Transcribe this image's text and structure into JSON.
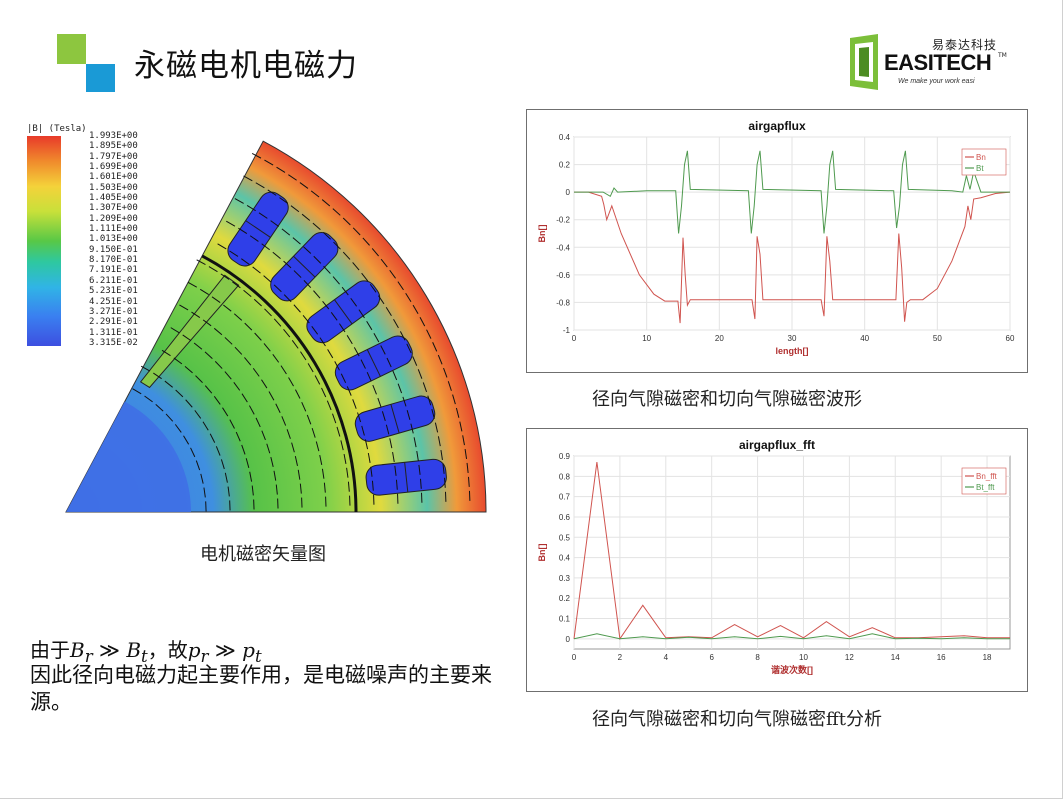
{
  "slide": {
    "title": "永磁电机电磁力",
    "logo": {
      "cn": "易泰达科技",
      "en": "EASITECH",
      "tm": "TM",
      "tagline": "We make your work easi"
    }
  },
  "legend": {
    "header": "|B| (Tesla)",
    "values": [
      "1.993E+00",
      "1.895E+00",
      "1.797E+00",
      "1.699E+00",
      "1.601E+00",
      "1.503E+00",
      "1.405E+00",
      "1.307E+00",
      "1.209E+00",
      "1.111E+00",
      "1.013E+00",
      "9.150E-01",
      "8.170E-01",
      "7.191E-01",
      "6.211E-01",
      "5.231E-01",
      "4.251E-01",
      "3.271E-01",
      "2.291E-01",
      "1.311E-01",
      "3.315E-02"
    ]
  },
  "captions": {
    "motor": "电机磁密矢量图",
    "plot1": "径向气隙磁密和切向气隙磁密波形",
    "plot2": "径向气隙磁密和切向气隙磁密fft分析"
  },
  "text": {
    "formula_prefix": "由于",
    "formula_mid": "，故",
    "line1": "因此径向电磁力起主要作用，是电磁噪声的主要来源。"
  },
  "chart_data": [
    {
      "type": "line",
      "title": "airgapflux",
      "xlabel": "length[]",
      "ylabel": "Bn[]",
      "xlim": [
        0,
        60
      ],
      "ylim": [
        -1,
        0.4
      ],
      "xticks": [
        0,
        10,
        20,
        30,
        40,
        50,
        60
      ],
      "yticks": [
        0.4,
        0.2,
        0,
        -0.2,
        -0.4,
        -0.6,
        -0.8,
        -1
      ],
      "grid": true,
      "legend": "top-right",
      "series": [
        {
          "name": "Bn",
          "color": "#d0544f",
          "x": [
            0,
            2,
            3.8,
            4.1,
            4.5,
            5.2,
            6.5,
            9,
            11,
            12.5,
            14.3,
            14.6,
            15,
            15.3,
            15.6,
            16,
            19,
            22,
            24.5,
            24.9,
            25.2,
            25.6,
            26,
            26.5,
            30,
            34,
            34.4,
            34.8,
            35.2,
            35.6,
            36,
            40,
            44.3,
            44.7,
            45.1,
            45.5,
            45.8,
            46.3,
            48,
            50,
            52,
            53.8,
            54.2,
            54.6,
            55,
            56,
            58,
            60
          ],
          "y": [
            0,
            0,
            -0.03,
            -0.09,
            -0.2,
            -0.1,
            -0.3,
            -0.6,
            -0.74,
            -0.79,
            -0.79,
            -0.95,
            -0.33,
            -0.6,
            -0.82,
            -0.78,
            -0.78,
            -0.78,
            -0.78,
            -0.92,
            -0.32,
            -0.45,
            -0.78,
            -0.78,
            -0.78,
            -0.78,
            -0.9,
            -0.32,
            -0.5,
            -0.78,
            -0.78,
            -0.78,
            -0.78,
            -0.3,
            -0.55,
            -0.94,
            -0.8,
            -0.78,
            -0.78,
            -0.7,
            -0.5,
            -0.25,
            -0.1,
            -0.2,
            -0.05,
            -0.04,
            -0.01,
            0
          ]
        },
        {
          "name": "Bt",
          "color": "#4f9a4f",
          "x": [
            0,
            4,
            5,
            5.5,
            6,
            10,
            14,
            14.4,
            14.8,
            15.2,
            15.6,
            16,
            24,
            24.4,
            24.8,
            25.2,
            25.6,
            26,
            34,
            34.4,
            34.8,
            35.2,
            35.6,
            36,
            44,
            44.4,
            44.8,
            45.2,
            45.6,
            46,
            52,
            53.5,
            54,
            54.5,
            55,
            56,
            60
          ],
          "y": [
            0,
            0,
            -0.03,
            0.03,
            0,
            0.01,
            0.01,
            -0.3,
            -0.1,
            0.2,
            0.3,
            0.02,
            0.01,
            -0.3,
            -0.1,
            0.2,
            0.3,
            0.02,
            0.01,
            -0.3,
            -0.1,
            0.2,
            0.3,
            0.02,
            0.01,
            -0.26,
            -0.1,
            0.2,
            0.3,
            0.02,
            0.01,
            0,
            0.12,
            0.02,
            0.15,
            0,
            0
          ]
        }
      ]
    },
    {
      "type": "line",
      "title": "airgapflux_fft",
      "xlabel": "谐波次数[]",
      "ylabel": "Bn[]",
      "xlim": [
        0,
        19
      ],
      "ylim": [
        -0.05,
        0.9
      ],
      "xticks": [
        0,
        2,
        4,
        6,
        8,
        10,
        12,
        14,
        16,
        18
      ],
      "yticks": [
        0.9,
        0.8,
        0.7,
        0.6,
        0.5,
        0.4,
        0.3,
        0.2,
        0.1,
        0
      ],
      "grid": true,
      "legend": "top-right",
      "series": [
        {
          "name": "Bn_fft",
          "color": "#d0544f",
          "x": [
            0,
            1,
            2,
            3,
            4,
            5,
            6,
            7,
            8,
            9,
            10,
            11,
            12,
            13,
            14,
            15,
            16,
            17,
            18,
            19
          ],
          "y": [
            0,
            0.87,
            0,
            0.165,
            0.005,
            0.01,
            0.005,
            0.07,
            0.01,
            0.065,
            0.005,
            0.085,
            0.01,
            0.055,
            0.005,
            0.005,
            0.01,
            0.015,
            0.005,
            0.005
          ]
        },
        {
          "name": "Bt_fft",
          "color": "#4f9a4f",
          "x": [
            0,
            1,
            2,
            3,
            4,
            5,
            6,
            7,
            8,
            9,
            10,
            11,
            12,
            13,
            14,
            15,
            16,
            17,
            18,
            19
          ],
          "y": [
            0,
            0.025,
            0,
            0.01,
            0,
            0.008,
            0,
            0.01,
            0,
            0.012,
            0,
            0.015,
            0,
            0.025,
            0,
            0.003,
            0,
            0.005,
            0,
            0
          ]
        }
      ]
    }
  ]
}
